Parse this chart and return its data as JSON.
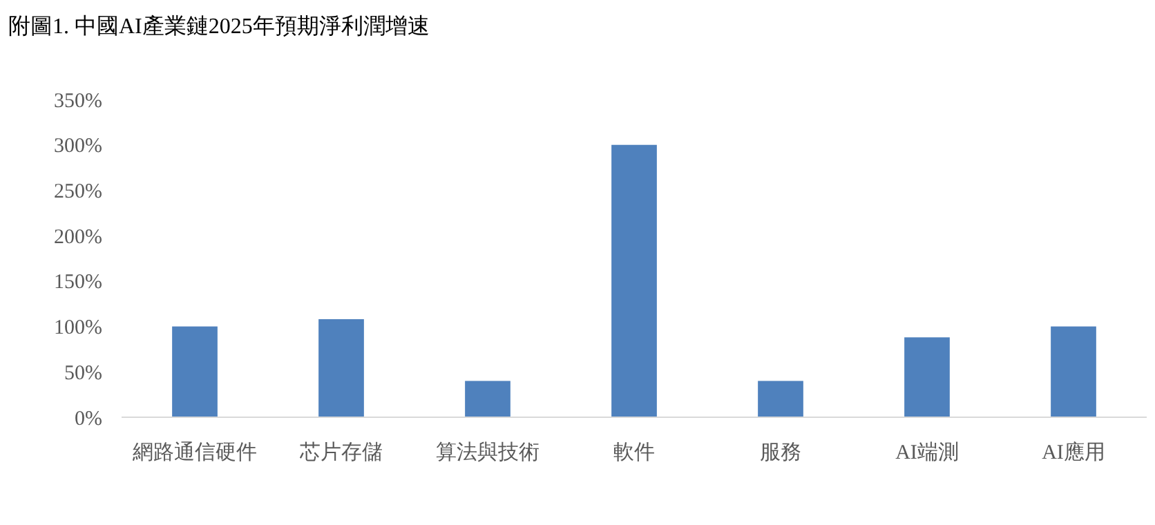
{
  "chart_data": {
    "type": "bar",
    "title": "附圖1. 中國AI產業鏈2025年預期淨利潤增速",
    "categories": [
      "網路通信硬件",
      "芯片存儲",
      "算法與技術",
      "軟件",
      "服務",
      "AI端測",
      "AI應用"
    ],
    "values": [
      100,
      108,
      40,
      300,
      40,
      88,
      100
    ],
    "color": "#4f81bd",
    "ylim": [
      0,
      350
    ],
    "yticks": [
      {
        "value": 0,
        "label": "0%"
      },
      {
        "value": 50,
        "label": "50%"
      },
      {
        "value": 100,
        "label": "100%"
      },
      {
        "value": 150,
        "label": "150%"
      },
      {
        "value": 200,
        "label": "200%"
      },
      {
        "value": 250,
        "label": "250%"
      },
      {
        "value": 300,
        "label": "300%"
      },
      {
        "value": 350,
        "label": "350%"
      }
    ],
    "grid": false
  }
}
